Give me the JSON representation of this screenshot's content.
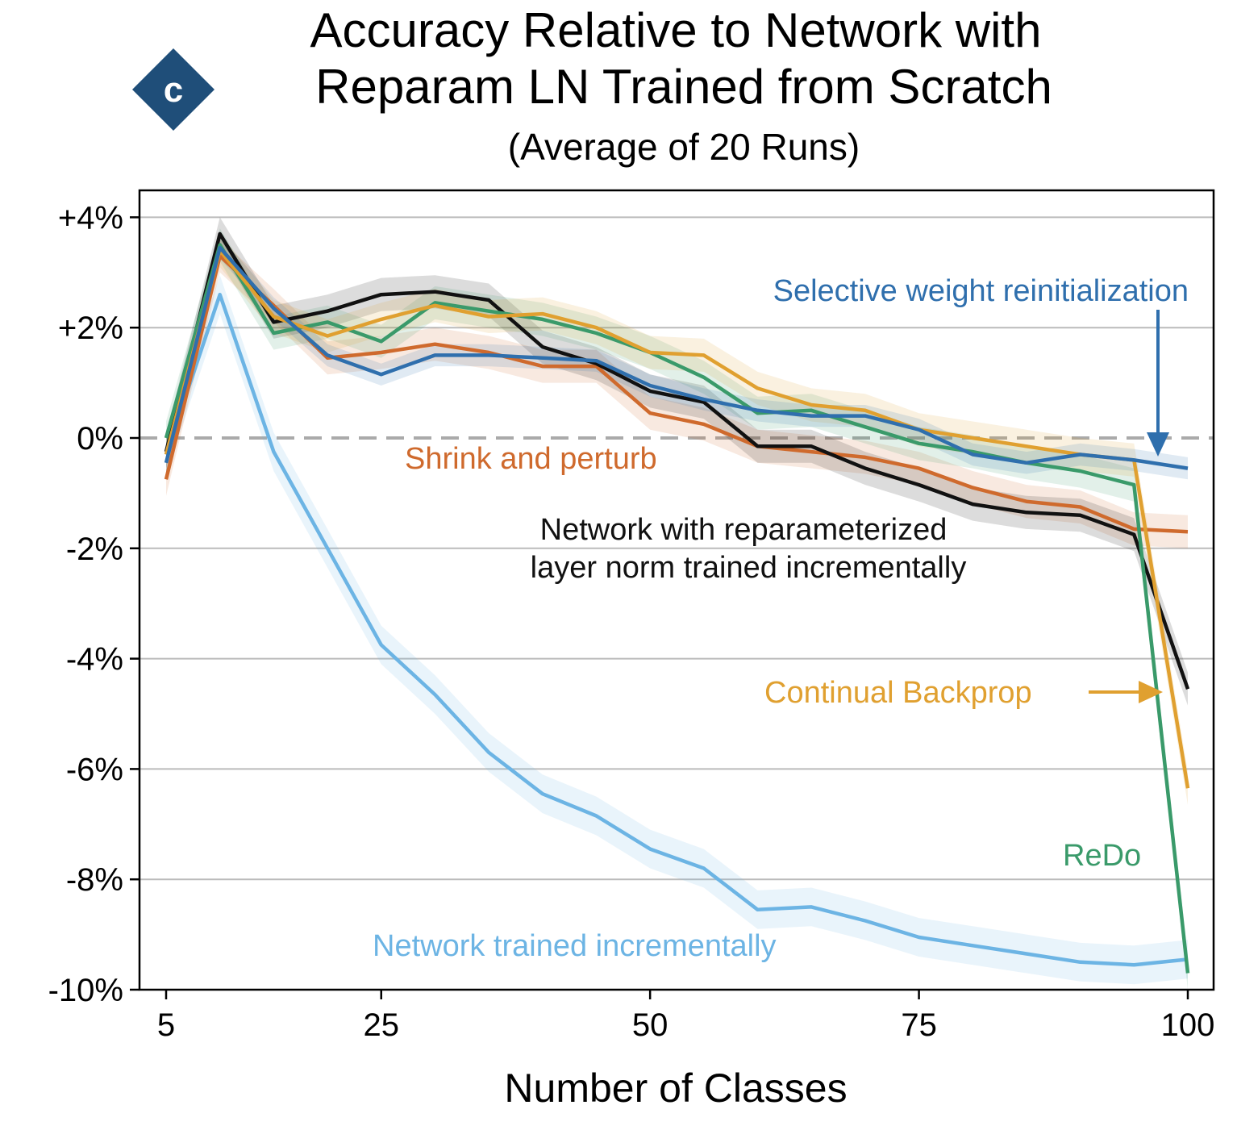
{
  "badge": {
    "letter": "c",
    "color": "#1f4e79"
  },
  "chart_data": {
    "type": "line",
    "title": "Accuracy Relative to Network with\nReparam LN Trained from Scratch",
    "subtitle": "(Average of 20 Runs)",
    "xlabel": "Number of Classes",
    "ylabel": "",
    "xlim": [
      3.5,
      103
    ],
    "ylim": [
      -10,
      4.5
    ],
    "x_ticks": [
      5,
      25,
      50,
      75,
      100
    ],
    "y_ticks": [
      4,
      2,
      0,
      -2,
      -4,
      -6,
      -8,
      -10
    ],
    "y_tick_labels": [
      "+4%",
      "+2%",
      "0%",
      "-2%",
      "-4%",
      "-6%",
      "-8%",
      "-10%"
    ],
    "grid": "horizontal",
    "reference_line": 0,
    "x": [
      5,
      10,
      15,
      20,
      25,
      30,
      35,
      40,
      45,
      50,
      55,
      60,
      65,
      70,
      75,
      80,
      85,
      90,
      95,
      100
    ],
    "series": [
      {
        "name": "Network trained incrementally",
        "color": "#6cb4e4",
        "band": 0.35,
        "values": [
          -0.3,
          2.6,
          -0.25,
          -2.0,
          -3.75,
          -4.65,
          -5.7,
          -6.45,
          -6.85,
          -7.45,
          -7.8,
          -8.55,
          -8.5,
          -8.75,
          -9.05,
          -9.2,
          -9.35,
          -9.5,
          -9.55,
          -9.45
        ]
      },
      {
        "name": "Shrink and perturb",
        "color": "#cf6a2d",
        "band": 0.3,
        "values": [
          -0.75,
          3.3,
          2.4,
          1.45,
          1.55,
          1.7,
          1.55,
          1.3,
          1.3,
          0.45,
          0.25,
          -0.15,
          -0.25,
          -0.35,
          -0.55,
          -0.9,
          -1.15,
          -1.25,
          -1.65,
          -1.7
        ]
      },
      {
        "name": "Network with reparameterized\nlayer norm trained incrementally",
        "color": "#111111",
        "band": 0.3,
        "values": [
          -0.25,
          3.7,
          2.1,
          2.3,
          2.6,
          2.65,
          2.5,
          1.65,
          1.35,
          0.85,
          0.65,
          -0.15,
          -0.15,
          -0.55,
          -0.85,
          -1.2,
          -1.35,
          -1.4,
          -1.75,
          -4.55
        ]
      },
      {
        "name": "ReDo",
        "color": "#3a9a6a",
        "band": 0.3,
        "values": [
          0.0,
          3.5,
          1.9,
          2.1,
          1.75,
          2.45,
          2.3,
          2.15,
          1.9,
          1.55,
          1.1,
          0.45,
          0.5,
          0.2,
          -0.1,
          -0.25,
          -0.45,
          -0.6,
          -0.85,
          -9.7
        ]
      },
      {
        "name": "Continual Backprop",
        "color": "#e0a030",
        "band": 0.3,
        "values": [
          -0.3,
          3.4,
          2.2,
          1.85,
          2.15,
          2.4,
          2.2,
          2.25,
          2.0,
          1.55,
          1.5,
          0.9,
          0.6,
          0.5,
          0.15,
          0.0,
          -0.15,
          -0.3,
          -0.4,
          -6.35
        ]
      },
      {
        "name": "Selective weight reinitialization",
        "color": "#2f6fad",
        "band": 0.2,
        "values": [
          -0.45,
          3.45,
          2.35,
          1.5,
          1.15,
          1.5,
          1.5,
          1.45,
          1.4,
          0.95,
          0.7,
          0.5,
          0.4,
          0.4,
          0.15,
          -0.3,
          -0.45,
          -0.3,
          -0.4,
          -0.55
        ]
      }
    ],
    "annotations": [
      {
        "text": "Selective weight reinitialization",
        "color": "#2f6fad"
      },
      {
        "text": "Shrink and perturb",
        "color": "#cf6a2d"
      },
      {
        "text": "Network with reparameterized",
        "color": "#111111"
      },
      {
        "text": "layer norm trained incrementally",
        "color": "#111111"
      },
      {
        "text": "Continual Backprop",
        "color": "#e0a030"
      },
      {
        "text": "ReDo",
        "color": "#3a9a6a"
      },
      {
        "text": "Network trained incrementally",
        "color": "#6cb4e4"
      }
    ]
  }
}
